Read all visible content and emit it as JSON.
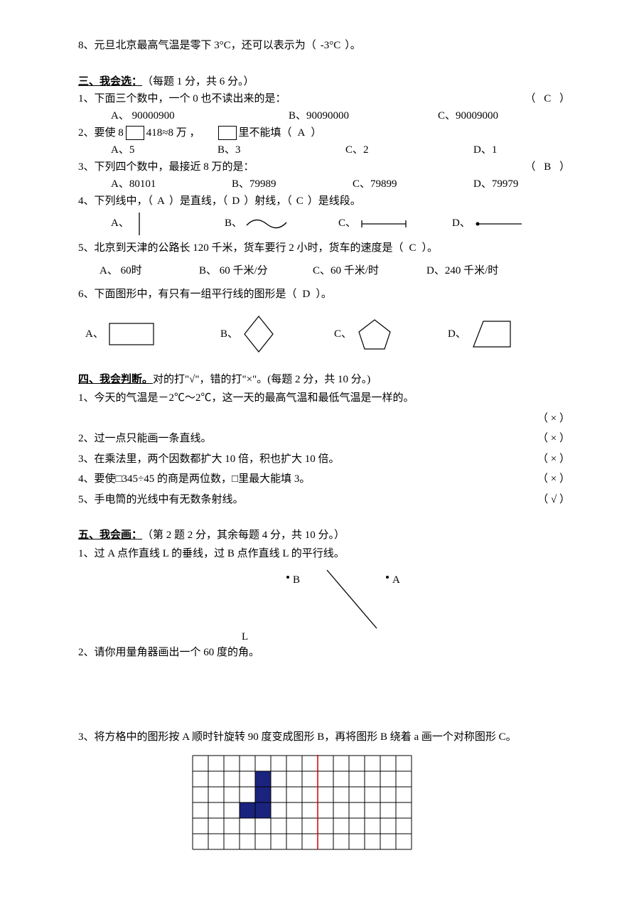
{
  "q8": {
    "text_a": "8、元旦北京最高气温是零下 3°C，还可以表示为（",
    "answer": "-3°C",
    "text_b": "）。"
  },
  "sec3": {
    "title": "三、我会选：",
    "sub": "（每题 1 分，共 6 分。）",
    "q1": {
      "text": "1、下面三个数中，一个 0 也不读出来的是：",
      "paren_l": "（",
      "answer": "C",
      "paren_r": "）",
      "optA": "A、 90000900",
      "optB": "B、90090000",
      "optC": "C、90009000"
    },
    "q2": {
      "text_a": "2、要使 8",
      "text_b": "418≈8 万 ，",
      "text_c": "里不能填（",
      "answer": "A",
      "text_d": "）",
      "optA": "A、5",
      "optB": "B、3",
      "optC": "C、2",
      "optD": "D、1"
    },
    "q3": {
      "text": "3、下列四个数中，最接近 8 万的是：",
      "paren_l": "（",
      "answer": "B",
      "paren_r": "）",
      "optA": "A、80101",
      "optB": "B、79989",
      "optC": "C、79899",
      "optD": "D、79979"
    },
    "q4": {
      "text_a": "4、下列线中，（",
      "ans1": "A",
      "text_b": "）是直线，（",
      "ans2": "D",
      "text_c": "）射线，（",
      "ans3": "C",
      "text_d": "）是线段。",
      "labA": "A、",
      "labB": "B、",
      "labC": "C、",
      "labD": "D、"
    },
    "q5": {
      "text_a": "5、北京到天津的公路长 120 千米，货车要行 2 小时，货车的速度是（",
      "answer": "C",
      "text_b": "）。",
      "optA": "A、 60时",
      "optB": "B、 60 千米/分",
      "optC": "C、60 千米/时",
      "optD": "D、240 千米/时"
    },
    "q6": {
      "text_a": "6、下面图形中，有只有一组平行线的图形是（",
      "answer": "D",
      "text_b": "）。",
      "labA": "A、",
      "labB": "B、",
      "labC": "C、",
      "labD": "D、"
    }
  },
  "sec4": {
    "title": "四、我会判断。",
    "sub": "对的打\"√\"，错的打\"×\"。(每题 2 分，共 10 分。)",
    "q1a": "1、今天的气温是－2℃～2℃，这一天的最高气温和最低气温是一样的。",
    "q1b": "（ × ）",
    "q2": "2、过一点只能画一条直线。",
    "q2b": "（ × ）",
    "q3": "3、在乘法里，两个因数都扩大 10 倍，积也扩大 10 倍。",
    "q3b": "（ × ）",
    "q4": "4、要使□345÷45 的商是两位数，□里最大能填 3。",
    "q4b": "（ × ）",
    "q5": "5、手电筒的光线中有无数条射线。",
    "q5b": "（ √ ）"
  },
  "sec5": {
    "title": "五、我会画：",
    "sub": "（第 2 题 2 分，其余每题 4 分，共 10 分。）",
    "q1": "1、过 A 点作直线 L 的垂线，过 B 点作直线 L 的平行线。",
    "labelB": "B",
    "labelA": "A",
    "labelL": "L",
    "q2": "2、请你用量角器画出一个 60 度的角。",
    "q3": "3、将方格中的图形按 A 顺时针旋转 90 度变成图形 B，再将图形 B 绕着 a 画一个对称图形 C。"
  },
  "grid": {
    "cols": 14,
    "rows": 6,
    "cell": 22,
    "stroke": "#000000",
    "fill": "#1a237e",
    "redline": "#cc0000",
    "filled_cells": [
      [
        4,
        1
      ],
      [
        4,
        2
      ],
      [
        3,
        3
      ],
      [
        4,
        3
      ]
    ],
    "redline_col": 8
  }
}
